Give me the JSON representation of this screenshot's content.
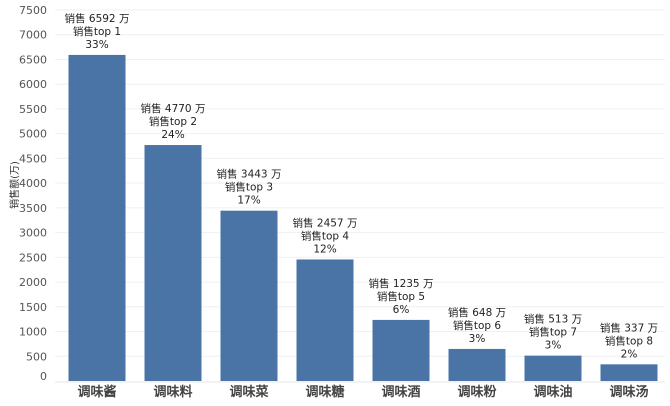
{
  "chart_data": {
    "type": "bar",
    "title": "",
    "xlabel": "",
    "ylabel": "销售额(万)",
    "ylim": [
      0,
      7500
    ],
    "yticks": [
      0,
      500,
      1000,
      1500,
      2000,
      2500,
      3000,
      3500,
      4000,
      4500,
      5000,
      5500,
      6000,
      6500,
      7000,
      7500
    ],
    "grid": true,
    "legend": "none",
    "bar_color": "#4a74a5",
    "categories": [
      "调味酱",
      "调味料",
      "调味菜",
      "调味糖",
      "调味酒",
      "调味粉",
      "调味油",
      "调味汤"
    ],
    "values": [
      6592,
      4770,
      3443,
      2457,
      1235,
      648,
      513,
      337
    ],
    "data_labels": [
      [
        "销售 6592 万",
        "销售top 1",
        "33%"
      ],
      [
        "销售 4770 万",
        "销售top 2",
        "24%"
      ],
      [
        "销售 3443 万",
        "销售top 3",
        "17%"
      ],
      [
        "销售 2457 万",
        "销售top 4",
        "12%"
      ],
      [
        "销售 1235 万",
        "销售top 5",
        "6%"
      ],
      [
        "销售 648 万",
        "销售top 6",
        "3%"
      ],
      [
        "销售 513 万",
        "销售top 7",
        "3%"
      ],
      [
        "销售 337 万",
        "销售top 8",
        "2%"
      ]
    ]
  }
}
